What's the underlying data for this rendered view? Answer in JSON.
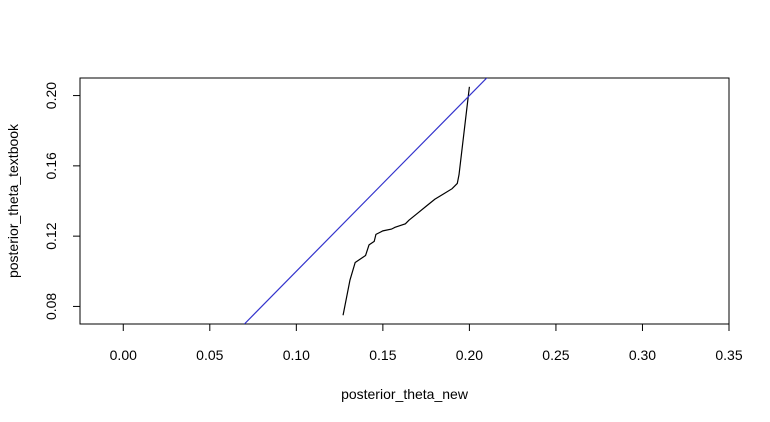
{
  "chart_data": {
    "type": "line",
    "title": "",
    "xlabel": "posterior_theta_new",
    "ylabel": "posterior_theta_textbook",
    "xlim": [
      -0.025,
      0.35
    ],
    "ylim": [
      0.07,
      0.21
    ],
    "x_ticks": [
      0.0,
      0.05,
      0.1,
      0.15,
      0.2,
      0.25,
      0.3,
      0.35
    ],
    "x_tick_labels": [
      "0.00",
      "0.05",
      "0.10",
      "0.15",
      "0.20",
      "0.25",
      "0.30",
      "0.35"
    ],
    "y_ticks": [
      0.08,
      0.12,
      0.16,
      0.2
    ],
    "y_tick_labels": [
      "0.08",
      "0.12",
      "0.16",
      "0.20"
    ],
    "grid": false,
    "legend": "none",
    "series": [
      {
        "color": "#000000",
        "x": [
          0.127,
          0.131,
          0.134,
          0.137,
          0.14,
          0.142,
          0.145,
          0.146,
          0.148,
          0.15,
          0.155,
          0.157,
          0.16,
          0.163,
          0.165,
          0.17,
          0.175,
          0.18,
          0.185,
          0.19,
          0.193,
          0.194,
          0.2
        ],
        "y": [
          0.075,
          0.095,
          0.105,
          0.107,
          0.109,
          0.115,
          0.117,
          0.121,
          0.122,
          0.123,
          0.124,
          0.125,
          0.126,
          0.127,
          0.129,
          0.133,
          0.137,
          0.141,
          0.144,
          0.147,
          0.15,
          0.155,
          0.205
        ]
      },
      {
        "color": "#3333cc",
        "x": [
          0.07,
          0.211
        ],
        "y": [
          0.07,
          0.211
        ]
      }
    ]
  }
}
